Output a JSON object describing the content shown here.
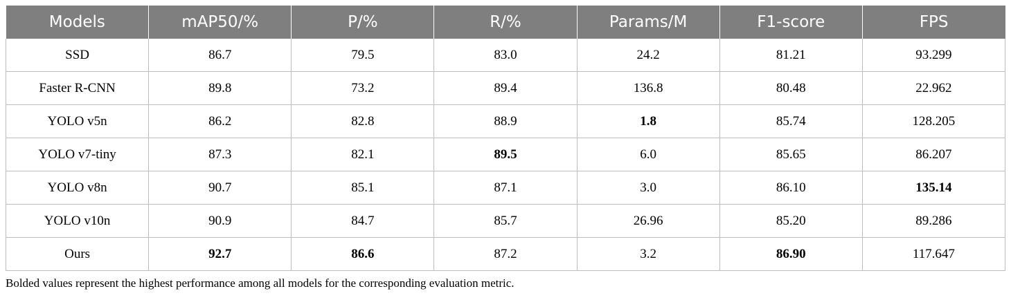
{
  "table": {
    "columns": [
      "Models",
      "mAP50/%",
      "P/%",
      "R/%",
      "Params/M",
      "F1-score",
      "FPS"
    ],
    "rows": [
      {
        "cells": [
          "SSD",
          "86.7",
          "79.5",
          "83.0",
          "24.2",
          "81.21",
          "93.299"
        ],
        "bold": []
      },
      {
        "cells": [
          "Faster R-CNN",
          "89.8",
          "73.2",
          "89.4",
          "136.8",
          "80.48",
          "22.962"
        ],
        "bold": []
      },
      {
        "cells": [
          "YOLO v5n",
          "86.2",
          "82.8",
          "88.9",
          "1.8",
          "85.74",
          "128.205"
        ],
        "bold": [
          4
        ]
      },
      {
        "cells": [
          "YOLO v7-tiny",
          "87.3",
          "82.1",
          "89.5",
          "6.0",
          "85.65",
          "86.207"
        ],
        "bold": [
          3
        ]
      },
      {
        "cells": [
          "YOLO v8n",
          "90.7",
          "85.1",
          "87.1",
          "3.0",
          "86.10",
          "135.14"
        ],
        "bold": [
          6
        ]
      },
      {
        "cells": [
          "YOLO v10n",
          "90.9",
          "84.7",
          "85.7",
          "26.96",
          "85.20",
          "89.286"
        ],
        "bold": []
      },
      {
        "cells": [
          "Ours",
          "92.7",
          "86.6",
          "87.2",
          "3.2",
          "86.90",
          "117.647"
        ],
        "bold": [
          1,
          2,
          5
        ]
      }
    ]
  },
  "footnote": "Bolded values represent the highest performance among all models for the corresponding evaluation metric.",
  "colors": {
    "header_bg": "#7f7f7f",
    "header_text": "#ffffff",
    "grid": "#bcbcbc"
  }
}
